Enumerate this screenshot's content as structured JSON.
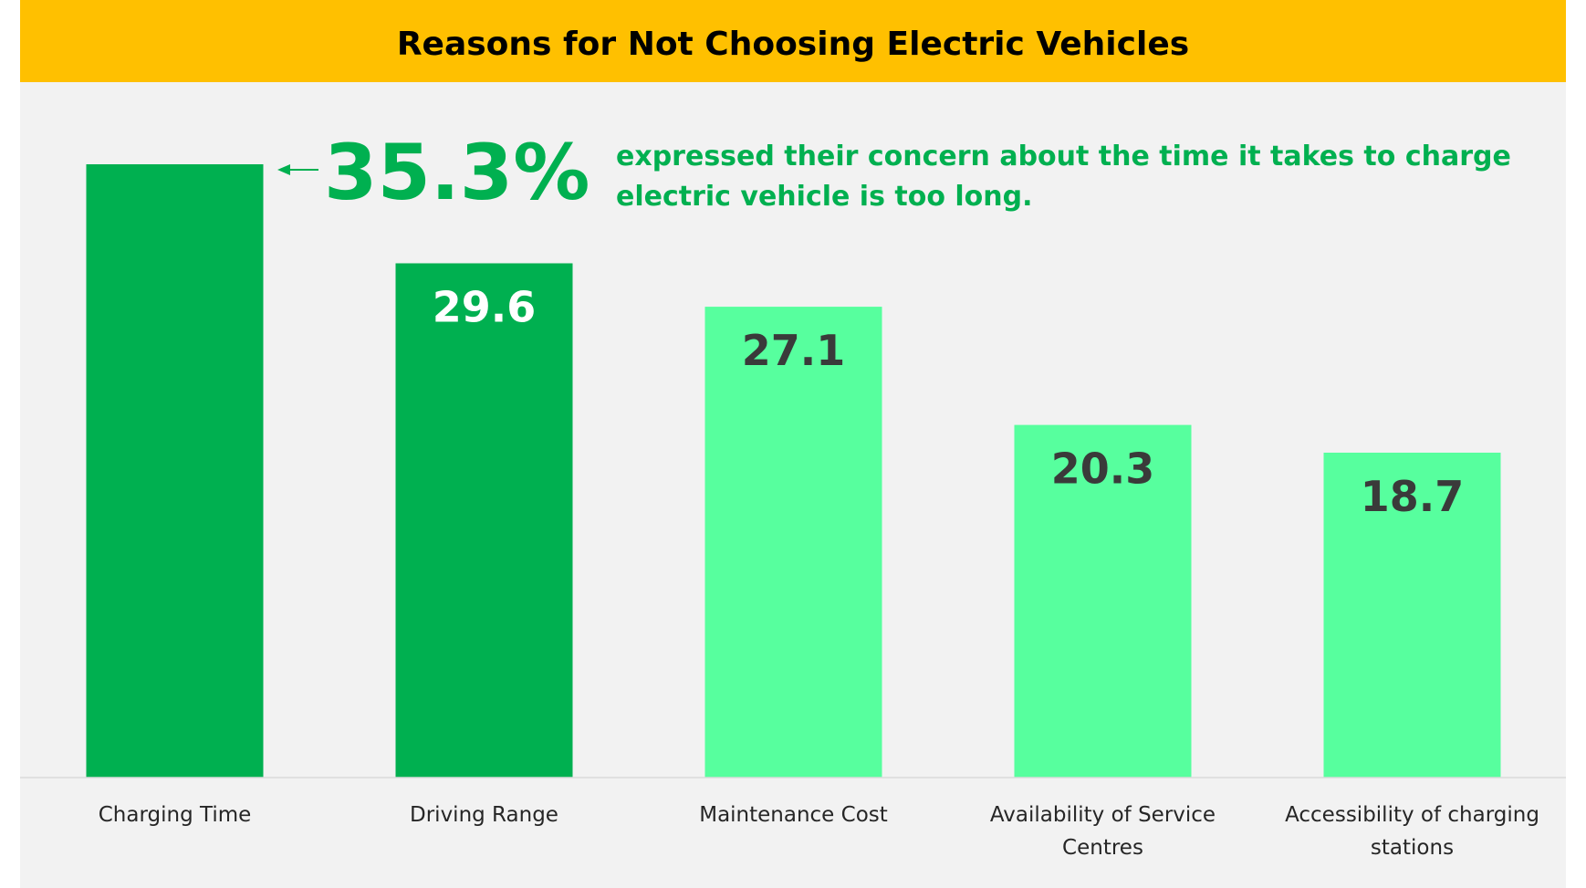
{
  "chart_data": {
    "type": "bar",
    "title": "Reasons for Not Choosing Electric Vehicles",
    "categories": [
      [
        "Charging Time"
      ],
      [
        "Driving Range"
      ],
      [
        "Maintenance Cost"
      ],
      [
        "Availability of Service",
        "Centres"
      ],
      [
        "Accessibility of charging",
        "stations"
      ]
    ],
    "values": [
      35.3,
      29.6,
      27.1,
      20.3,
      18.7
    ],
    "value_labels": [
      "",
      "29.6",
      "27.1",
      "20.3",
      "18.7"
    ],
    "ylim": [
      0,
      35.3
    ],
    "grid": false,
    "callout": {
      "value_text": "35.3%",
      "text_lines": [
        "expressed their concern about the time it takes to charge",
        "electric vehicle is too long."
      ]
    },
    "colors": {
      "title_band": "#FFC000",
      "plot_background": "#F2F2F2",
      "highlight_bar": "#00B050",
      "other_bar": "#57FF9E",
      "highlight_label": "#FFFFFF",
      "other_label": "#3A3A3A",
      "callout": "#00B050",
      "axis_line": "#D9D9D9"
    },
    "highlight_count": 2
  }
}
